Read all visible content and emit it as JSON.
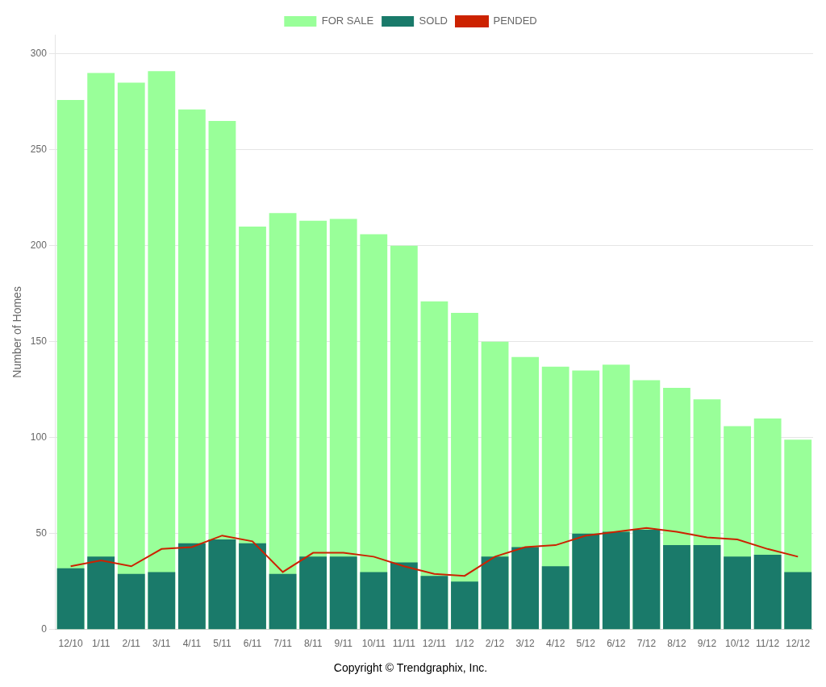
{
  "chart_data": {
    "type": "bar",
    "categories": [
      "12/10",
      "1/11",
      "2/11",
      "3/11",
      "4/11",
      "5/11",
      "6/11",
      "7/11",
      "8/11",
      "9/11",
      "10/11",
      "11/11",
      "12/11",
      "1/12",
      "2/12",
      "3/12",
      "4/12",
      "5/12",
      "6/12",
      "7/12",
      "8/12",
      "9/12",
      "10/12",
      "11/12",
      "12/12"
    ],
    "series": [
      {
        "name": "FOR SALE",
        "type": "bar",
        "color": "#99ff99",
        "values": [
          276,
          290,
          285,
          291,
          271,
          265,
          210,
          217,
          213,
          214,
          206,
          200,
          171,
          165,
          150,
          142,
          137,
          135,
          138,
          130,
          126,
          120,
          106,
          110,
          99
        ]
      },
      {
        "name": "SOLD",
        "type": "bar",
        "color": "#1a7a6a",
        "values": [
          32,
          38,
          29,
          30,
          45,
          47,
          45,
          29,
          38,
          38,
          30,
          35,
          28,
          25,
          38,
          43,
          33,
          50,
          51,
          52,
          44,
          44,
          38,
          39,
          30
        ]
      },
      {
        "name": "PENDED",
        "type": "line",
        "color": "#cc2200",
        "values": [
          33,
          36,
          33,
          42,
          43,
          49,
          46,
          30,
          40,
          40,
          38,
          33,
          29,
          28,
          38,
          43,
          44,
          49,
          51,
          53,
          51,
          48,
          47,
          42,
          38
        ]
      }
    ],
    "ylabel": "Number of Homes",
    "ylim": [
      0,
      310
    ],
    "yticks": [
      0,
      50,
      100,
      150,
      200,
      250,
      300
    ],
    "grid": true,
    "legend": "top",
    "stacked": false,
    "annotations": [
      "Copyright © Trendgraphix, Inc."
    ]
  }
}
